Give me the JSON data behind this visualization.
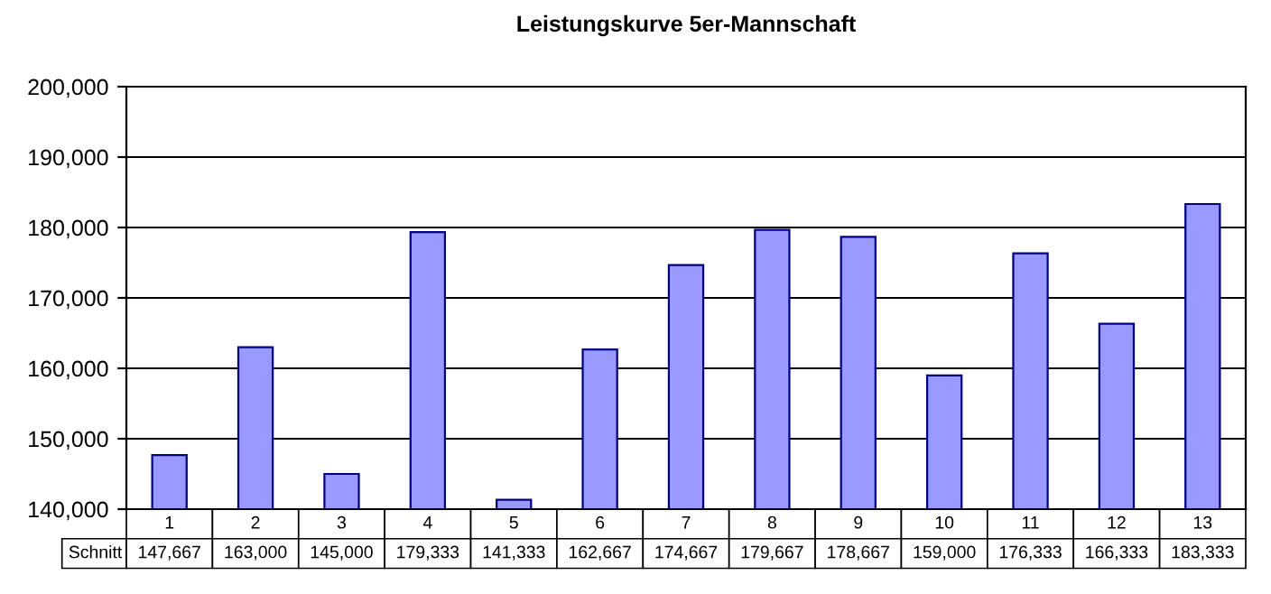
{
  "chart_data": {
    "type": "bar",
    "title": "Leistungskurve 5er-Mannschaft",
    "categories": [
      "1",
      "2",
      "3",
      "4",
      "5",
      "6",
      "7",
      "8",
      "9",
      "10",
      "11",
      "12",
      "13"
    ],
    "series": [
      {
        "name": "Schnitt",
        "color": "#9999ff",
        "values": [
          147667,
          163000,
          145000,
          179333,
          141333,
          162667,
          174667,
          179667,
          178667,
          159000,
          176333,
          166333,
          183333
        ],
        "value_labels": [
          "147,667",
          "163,000",
          "145,000",
          "179,333",
          "141,333",
          "162,667",
          "174,667",
          "179,667",
          "178,667",
          "159,000",
          "176,333",
          "166,333",
          "183,333"
        ]
      }
    ],
    "ylim": [
      140000,
      200000
    ],
    "yticks": [
      {
        "value": 140000,
        "label": "140,000"
      },
      {
        "value": 150000,
        "label": "150,000"
      },
      {
        "value": 160000,
        "label": "160,000"
      },
      {
        "value": 170000,
        "label": "170,000"
      },
      {
        "value": 180000,
        "label": "180,000"
      },
      {
        "value": 190000,
        "label": "190,000"
      },
      {
        "value": 200000,
        "label": "200,000"
      }
    ],
    "grid": "y",
    "legend": false
  }
}
